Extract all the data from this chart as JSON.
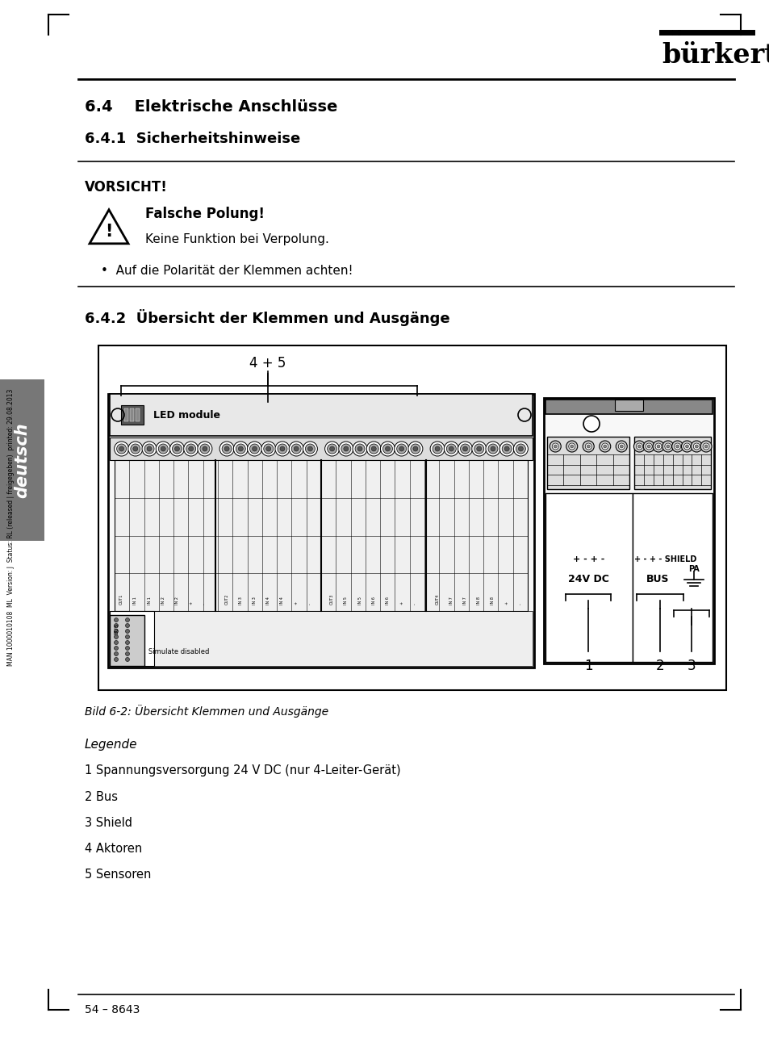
{
  "page_bg": "#ffffff",
  "page_width": 9.54,
  "page_height": 13.07,
  "burkert_logo": "bürkert",
  "section_title": "6.4    Elektrische Anschlüsse",
  "subsection1": "6.4.1  Sicherheitshinweise",
  "vorsicht_label": "VORSICHT!",
  "warning_bold": "Falsche Polung!",
  "warning_text": "Keine Funktion bei Verpolung.",
  "bullet_text": "•  Auf die Polarität der Klemmen achten!",
  "subsection2": "6.4.2  Übersicht der Klemmen und Ausgänge",
  "figure_label": "4 + 5",
  "led_module_text": "LED module",
  "simulate_disabled": "Simulate disabled",
  "label_24vdc": "24V DC",
  "label_bus": "BUS",
  "label_shield": "SHIELD",
  "label_pa": "PA",
  "plus_minus_left": "+ - + -",
  "plus_minus_right": "+ - + - SHIELD",
  "num1": "1",
  "num2": "2",
  "num3": "3",
  "caption": "Bild 6-2: Übersicht Klemmen und Ausgänge",
  "legend_title": "Legende",
  "legend_items": [
    "1 Spannungsversorgung 24 V DC (nur 4-Leiter-Gerät)",
    "2 Bus",
    "3 Shield",
    "4 Aktoren",
    "5 Sensoren"
  ],
  "footer_text": "54 – 8643",
  "side_label": "deutsch",
  "side_meta": "MAN 1000010108  ML  Version: J  Status: RL (released | freigegeben)  printed: 29.08.2013"
}
